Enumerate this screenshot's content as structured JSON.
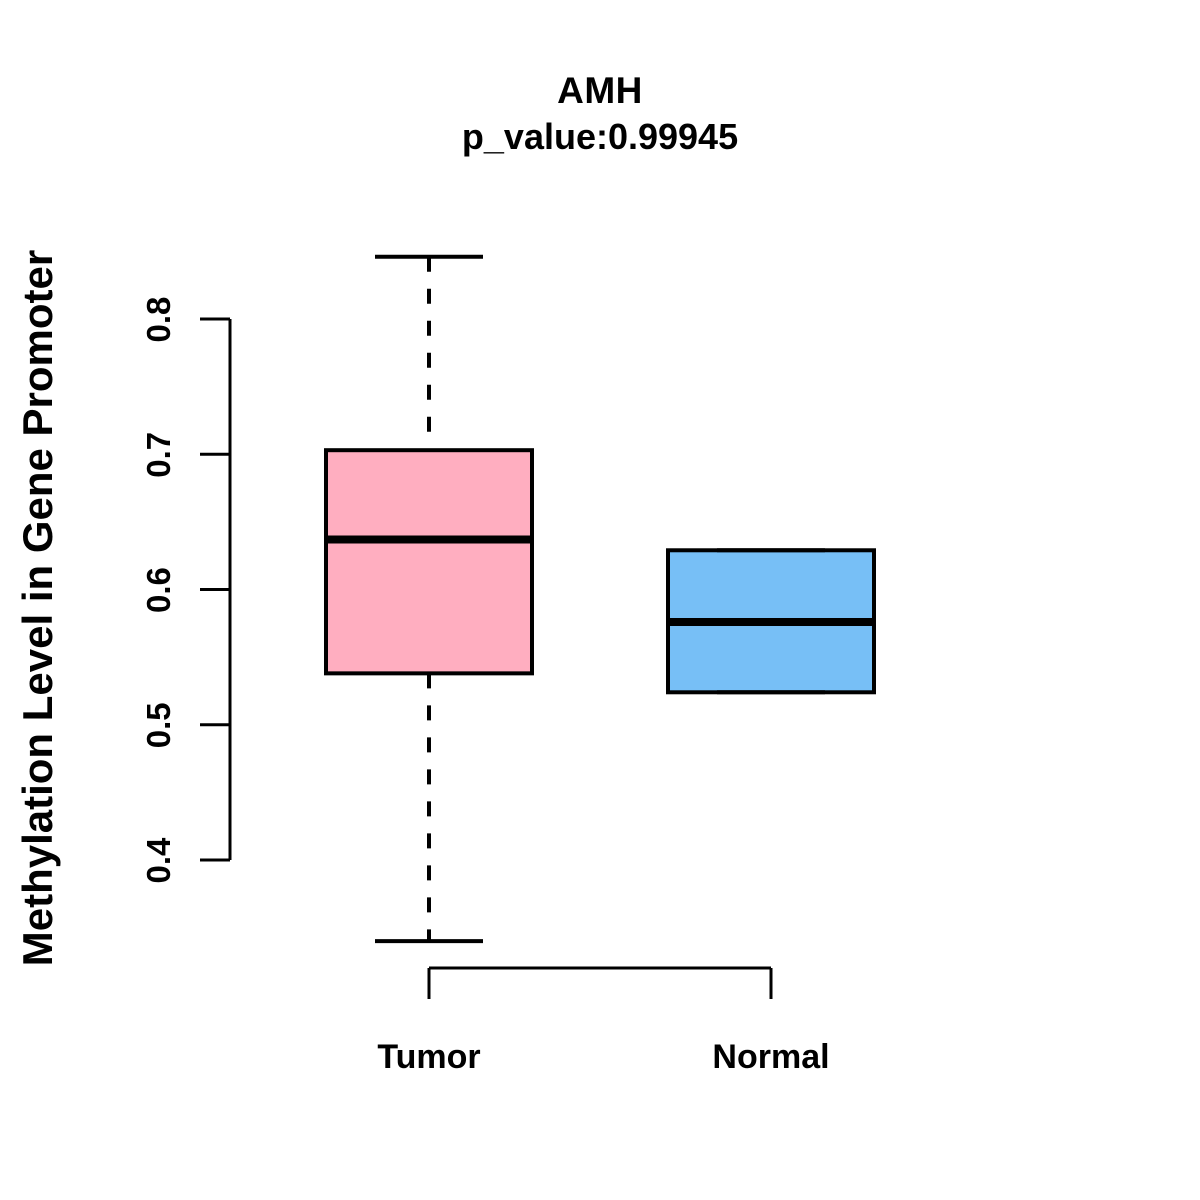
{
  "figure": {
    "title": "AMH",
    "subtitle": "p_value:0.99945",
    "y_axis_label": "Methylation Level in Gene Promoter"
  },
  "colors": {
    "tumor_fill": "#FFAEC0",
    "normal_fill": "#77BFF6",
    "line": "#000000",
    "background": "#FFFFFF"
  },
  "chart_data": {
    "type": "boxplot",
    "title": "AMH",
    "subtitle": "p_value:0.99945",
    "ylabel": "Methylation Level in Gene Promoter",
    "xlabel": "",
    "categories": [
      "Tumor",
      "Normal"
    ],
    "y_ticks": [
      0.4,
      0.5,
      0.6,
      0.7,
      0.8
    ],
    "ylim": [
      0.33,
      0.86
    ],
    "grid": false,
    "legend": false,
    "series": [
      {
        "name": "Tumor",
        "fill": "#FFAEC0",
        "whisker_low": 0.34,
        "q1": 0.538,
        "median": 0.637,
        "q3": 0.703,
        "whisker_high": 0.846
      },
      {
        "name": "Normal",
        "fill": "#77BFF6",
        "whisker_low": 0.524,
        "q1": 0.524,
        "median": 0.576,
        "q3": 0.629,
        "whisker_high": 0.629
      }
    ]
  }
}
